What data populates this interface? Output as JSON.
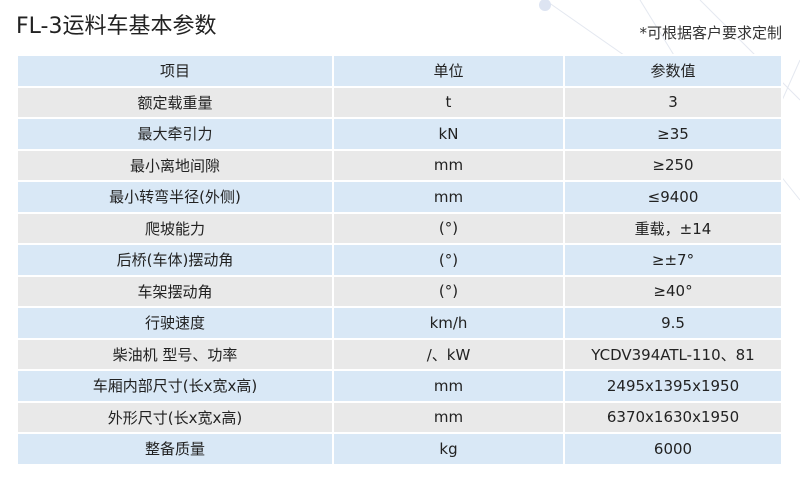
{
  "title": "FL-3运料车基本参数",
  "note": "*可根据客户要求定制",
  "header": [
    "项目",
    "单位",
    "参数值"
  ],
  "rows": [
    [
      "额定载重量",
      "t",
      "3"
    ],
    [
      "最大牵引力",
      "kN",
      "≥35"
    ],
    [
      "最小离地间隙",
      "mm",
      "≥250"
    ],
    [
      "最小转弯半径(外侧)",
      "mm",
      "≤9400"
    ],
    [
      "爬坡能力",
      "(°)",
      "重载，±14"
    ],
    [
      "后桥(车体)摆动角",
      "(°)",
      "≥±7°"
    ],
    [
      "车架摆动角",
      "(°)",
      "≥40°"
    ],
    [
      "行驶速度",
      "km/h",
      "9.5"
    ],
    [
      "柴油机 型号、功率",
      "/、kW",
      "YCDV394ATL-110、81"
    ],
    [
      "车厢内部尺寸(长x宽x高)",
      "mm",
      "2495x1395x1950"
    ],
    [
      "外形尺寸(长x宽x高)",
      "mm",
      "6370x1630x1950"
    ],
    [
      "整备质量",
      "kg",
      "6000"
    ]
  ],
  "colors": {
    "header": "#d9e8f6",
    "row_alt": "#e9e9e9"
  }
}
